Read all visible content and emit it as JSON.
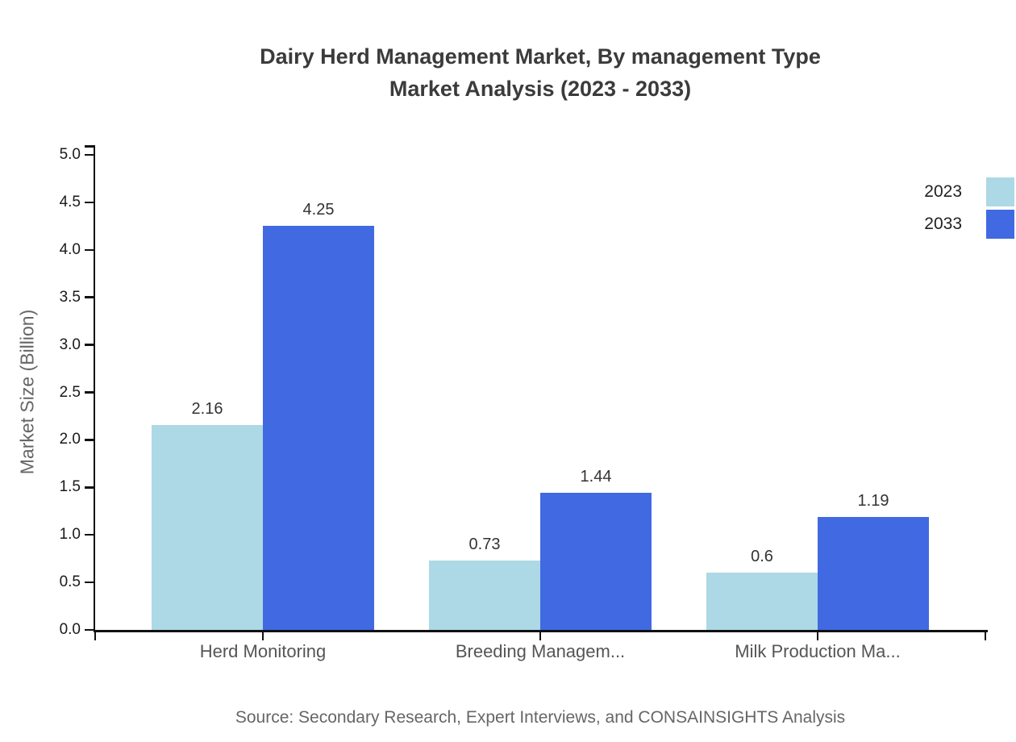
{
  "title": {
    "line1": "Dairy Herd Management Market, By management Type",
    "line2": "Market Analysis (2023 - 2033)"
  },
  "source": {
    "text": "Source: Secondary Research, Expert Interviews, and CONSAINSIGHTS Analysis"
  },
  "chart_data": {
    "type": "bar",
    "title": "Dairy Herd Management Market, By management Type Market Analysis (2023 - 2033)",
    "categories": [
      "Herd Monitoring",
      "Breeding Managem...",
      "Milk Production Ma..."
    ],
    "series": [
      {
        "name": "2023",
        "color": "#ADD8E6",
        "values": [
          2.16,
          0.73,
          0.6
        ],
        "labels": [
          "2.16",
          "0.73",
          "0.6"
        ]
      },
      {
        "name": "2033",
        "color": "#4169E1",
        "values": [
          4.25,
          1.44,
          1.19
        ],
        "labels": [
          "4.25",
          "1.44",
          "1.19"
        ]
      }
    ],
    "xlabel": "",
    "ylabel": "Market Size (Billion)",
    "ylim": [
      0,
      5
    ],
    "yticks": [
      "0.0",
      "0.5",
      "1.0",
      "1.5",
      "2.0",
      "2.5",
      "3.0",
      "3.5",
      "4.0",
      "4.5",
      "5.0"
    ],
    "grid": false,
    "legend_position": "top-right"
  },
  "colors": {
    "background": "#FFFFFF",
    "title_text": "#3B3B3B",
    "axis": "#111111",
    "ytick_label": "#1A1A1A",
    "category_label": "#555555",
    "value_label": "#333333",
    "muted_text": "#666666",
    "series_2023": "#ADD8E6",
    "series_2033": "#4169E1"
  }
}
